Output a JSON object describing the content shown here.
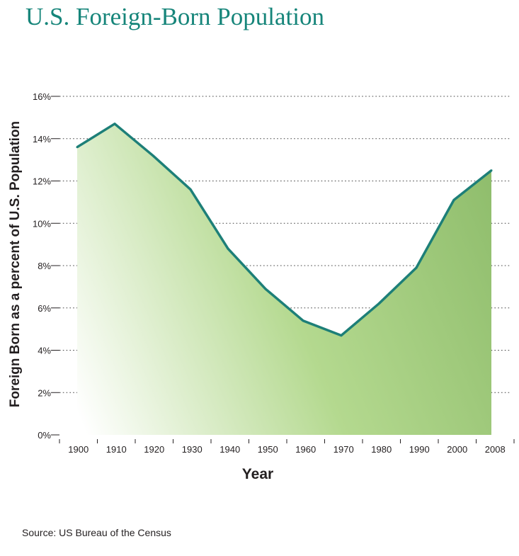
{
  "title": "U.S. Foreign-Born Population",
  "source": "Source: US Bureau of the Census",
  "colors": {
    "title": "#16857a",
    "line": "#1d7f78",
    "fill_light": "#ffffff",
    "fill_mid": "#b4d98f",
    "fill_dark": "#8fbd6c",
    "grid": "#444444"
  },
  "chart_data": {
    "type": "area",
    "title": "U.S. Foreign-Born Population",
    "xlabel": "Year",
    "ylabel": "Foreign Born as a percent of U.S. Population",
    "x_tick_labels": [
      "1900",
      "1910",
      "1920",
      "1930",
      "1940",
      "1950",
      "1960",
      "1970",
      "1980",
      "1990",
      "2000",
      "2008"
    ],
    "y_tick_labels": [
      "0%",
      "2%",
      "4%",
      "6%",
      "8%",
      "10%",
      "12%",
      "14%",
      "16%"
    ],
    "y_ticks": [
      0,
      2,
      4,
      6,
      8,
      10,
      12,
      14,
      16
    ],
    "ylim": [
      0,
      16
    ],
    "grid": "horizontal dotted",
    "x": [
      1900,
      1910,
      1920,
      1930,
      1940,
      1950,
      1960,
      1970,
      1980,
      1990,
      2000,
      2008
    ],
    "values": [
      13.6,
      14.7,
      13.2,
      11.6,
      8.8,
      6.9,
      5.4,
      4.7,
      6.2,
      7.9,
      11.1,
      12.5
    ]
  }
}
